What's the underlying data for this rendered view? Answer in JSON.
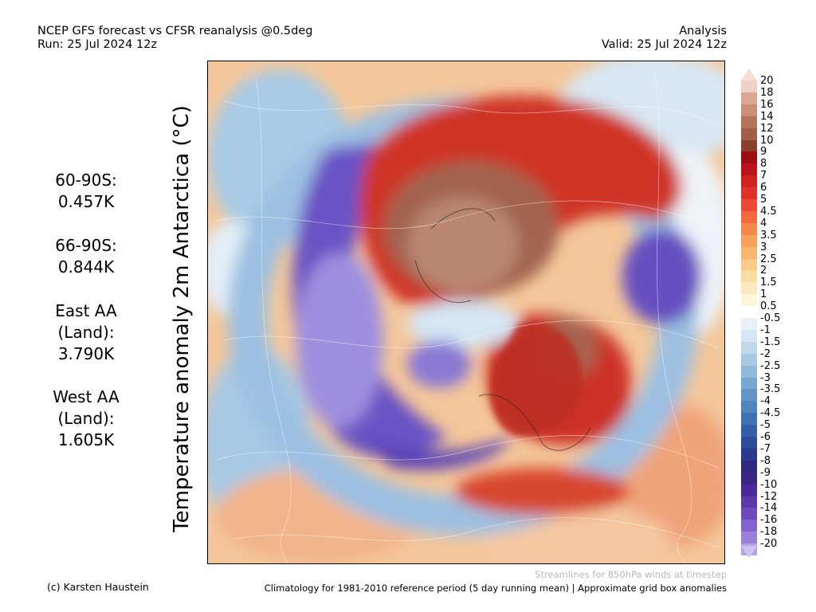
{
  "header": {
    "title_line1": "NCEP GFS forecast vs CFSR reanalysis @0.5deg",
    "title_line2": "Run: 25 Jul 2024 12z",
    "right_line1": "Analysis",
    "right_line2": "Valid: 25 Jul 2024 12z"
  },
  "stats": [
    {
      "lines": [
        "60-90S:",
        "0.457K"
      ]
    },
    {
      "lines": [
        "66-90S:",
        "0.844K"
      ]
    },
    {
      "lines": [
        "East AA",
        "(Land):",
        "3.790K"
      ]
    },
    {
      "lines": [
        "West AA",
        "(Land):",
        "1.605K"
      ]
    }
  ],
  "map": {
    "ylabel": "Temperature anomaly 2m Antarctica (°C)"
  },
  "colorbar": {
    "levels": [
      "20",
      "18",
      "16",
      "14",
      "12",
      "10",
      "9",
      "8",
      "7",
      "6",
      "5",
      "4.5",
      "4",
      "3.5",
      "3",
      "2.5",
      "2",
      "1.5",
      "1",
      "0.5",
      "-0.5",
      "-1",
      "-1.5",
      "-2",
      "-2.5",
      "-3",
      "-3.5",
      "-4",
      "-4.5",
      "-5",
      "-6",
      "-7",
      "-8",
      "-9",
      "-10",
      "-12",
      "-14",
      "-16",
      "-18",
      "-20"
    ],
    "colors": [
      "#efd2c6",
      "#d9a892",
      "#c88e76",
      "#b5735c",
      "#a15d49",
      "#8a3f2c",
      "#9e0d14",
      "#b8141a",
      "#d1211d",
      "#e0322a",
      "#ec4a35",
      "#f46a3c",
      "#f8874a",
      "#f9a25c",
      "#fbb76f",
      "#fccb89",
      "#fddca3",
      "#fde9bf",
      "#fef5dc",
      "#ffffff",
      "#eaf2f9",
      "#d6e6f3",
      "#c0d8ec",
      "#a7c9e3",
      "#8fb8da",
      "#78a7d0",
      "#6396c7",
      "#4f85bd",
      "#3f72b3",
      "#345fa8",
      "#2c4c9b",
      "#2a3a8d",
      "#2e2a7f",
      "#3a2585",
      "#4b2a99",
      "#5c38ad",
      "#6f4abd",
      "#8262cc",
      "#9a80db",
      "#b7a4e8"
    ],
    "top_arrow_color": "#f6ddd2",
    "bottom_arrow_color": "#cfc3f2"
  },
  "footer": {
    "credit": "(c) Karsten Haustein",
    "streamline_note": "Streamlines for 850hPa winds at timestep",
    "climatology_note": "Climatology for 1981-2010 reference period (5 day running mean) | Approximate grid box anomalies"
  }
}
